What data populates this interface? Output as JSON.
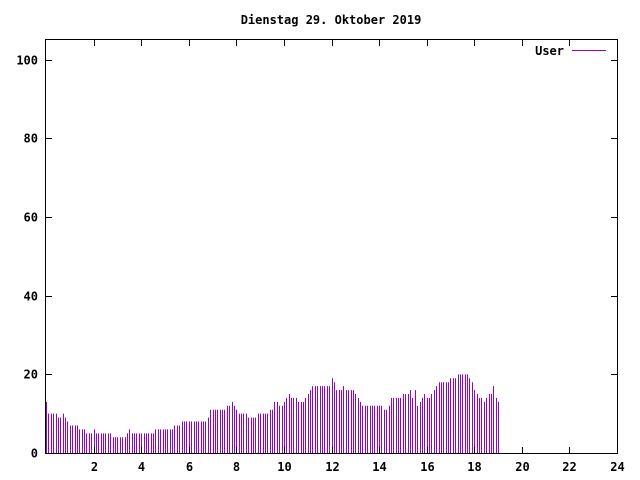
{
  "chart_data": {
    "type": "bar",
    "title": "Dienstag 29. Oktober 2019",
    "xlabel": "",
    "ylabel": "",
    "xlim": [
      0,
      24
    ],
    "ylim": [
      0,
      105
    ],
    "x_ticks": [
      2,
      4,
      6,
      8,
      10,
      12,
      14,
      16,
      18,
      20,
      22,
      24
    ],
    "y_ticks": [
      0,
      20,
      40,
      60,
      80,
      100
    ],
    "grid": false,
    "legend_position": "top-right",
    "colors": {
      "series": "#9400d3",
      "axis": "#000000"
    },
    "sample_interval_hours": 0.1,
    "series": [
      {
        "name": "User",
        "values": [
          13,
          10,
          10,
          10,
          10,
          9,
          9,
          10,
          9,
          8,
          7,
          7,
          7,
          7,
          6,
          6,
          6,
          5,
          5,
          5,
          6,
          5,
          5,
          5,
          5,
          5,
          5,
          5,
          4,
          4,
          4,
          4,
          4,
          4,
          5,
          6,
          5,
          5,
          5,
          5,
          5,
          5,
          5,
          5,
          5,
          5,
          6,
          6,
          6,
          6,
          6,
          6,
          6,
          6,
          7,
          7,
          7,
          8,
          8,
          8,
          8,
          8,
          8,
          8,
          8,
          8,
          8,
          8,
          9,
          11,
          11,
          11,
          11,
          11,
          11,
          11,
          12,
          12,
          13,
          12,
          11,
          10,
          10,
          10,
          10,
          9,
          9,
          9,
          9,
          10,
          10,
          10,
          10,
          10,
          11,
          11,
          13,
          13,
          12,
          12,
          13,
          14,
          15,
          14,
          14,
          14,
          13,
          13,
          13,
          14,
          15,
          16,
          17,
          17,
          17,
          17,
          17,
          17,
          17,
          17,
          19,
          18,
          16,
          16,
          16,
          17,
          16,
          16,
          16,
          16,
          15,
          14,
          13,
          12,
          12,
          12,
          12,
          12,
          12,
          12,
          12,
          12,
          11,
          11,
          12,
          14,
          14,
          14,
          14,
          14,
          15,
          15,
          15,
          16,
          14,
          16,
          12,
          13,
          14,
          15,
          14,
          14,
          15,
          16,
          17,
          18,
          18,
          18,
          18,
          18,
          19,
          19,
          19,
          20,
          20,
          20,
          20,
          20,
          19,
          18,
          16,
          15,
          14,
          14,
          13,
          14,
          15,
          15,
          17,
          14,
          13
        ]
      }
    ]
  }
}
